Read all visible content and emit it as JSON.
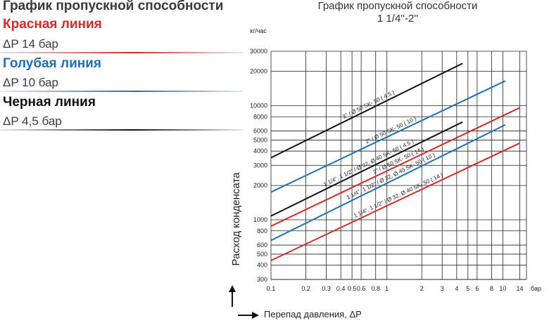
{
  "legend": {
    "title": "График пропускной способности",
    "items": [
      {
        "name": "Красная линия",
        "value": "ΔP 14 бар",
        "color": "#d42a2a"
      },
      {
        "name": "Голубая линия",
        "value": "ΔP 10 бар",
        "color": "#1f6fb5"
      },
      {
        "name": "Черная линия",
        "value": "ΔP 4,5 бар",
        "color": "#111111"
      }
    ]
  },
  "chart_data": {
    "type": "line",
    "title": "График пропускной способности",
    "subtitle": "1 1/4''-2''",
    "ylabel": "Расход конденсата",
    "yunit": "кг/час",
    "xlabel": "Перепад давления, ΔP",
    "xunit": "бар",
    "xscale": "log",
    "yscale": "log",
    "xlim": [
      0.1,
      16
    ],
    "ylim": [
      300,
      30000
    ],
    "grid": true,
    "xticks": [
      0.1,
      0.2,
      0.3,
      0.4,
      0.5,
      0.6,
      0.8,
      1,
      2,
      3,
      4,
      5,
      6,
      8,
      10,
      14
    ],
    "xtick_labels": [
      "0.1",
      "0.2",
      "0.3",
      "0.4",
      "0.5",
      "0.6",
      "0.8",
      "1",
      "2",
      "3",
      "4",
      "5",
      "6",
      "8",
      "10",
      "14"
    ],
    "yticks": [
      300,
      400,
      500,
      600,
      800,
      1000,
      2000,
      3000,
      4000,
      5000,
      6000,
      8000,
      10000,
      20000,
      30000
    ],
    "ytick_labels": [
      "300",
      "400",
      "500",
      "600",
      "800",
      "1000",
      "2000",
      "3000",
      "4000",
      "5000",
      "6000",
      "8000",
      "10000",
      "20000",
      "30000"
    ],
    "series": [
      {
        "name": "2\" / Ø 50 SK- 50 ( 4.5 )",
        "color": "#111111",
        "x": [
          0.1,
          4.5
        ],
        "y": [
          3500,
          23500
        ]
      },
      {
        "name": "2\" / Ø 50 SK- 50 ( 10 )",
        "color": "#1f6fb5",
        "x": [
          0.1,
          10.5
        ],
        "y": [
          1750,
          16500
        ]
      },
      {
        "name": "2\" / Ø 50 SK- 50 ( 14 )",
        "color": "#d42a2a",
        "x": [
          0.1,
          14
        ],
        "y": [
          880,
          9600
        ]
      },
      {
        "name": "1 1/4\", 1 1/2\" / Ø 32, Ø 40 SK- 50 ( 4.5 )",
        "color": "#111111",
        "x": [
          0.1,
          4.5
        ],
        "y": [
          1080,
          7200
        ]
      },
      {
        "name": "1 1/4\", 1 1/2\" / Ø 32, Ø 40 SK- 50 ( 10 )",
        "color": "#1f6fb5",
        "x": [
          0.1,
          10.5
        ],
        "y": [
          660,
          6800
        ]
      },
      {
        "name": "1 1/4\", 1 1/2\" / Ø 32, Ø 40 SK- 50 ( 14 )",
        "color": "#d42a2a",
        "x": [
          0.1,
          14
        ],
        "y": [
          440,
          4700
        ]
      }
    ]
  }
}
